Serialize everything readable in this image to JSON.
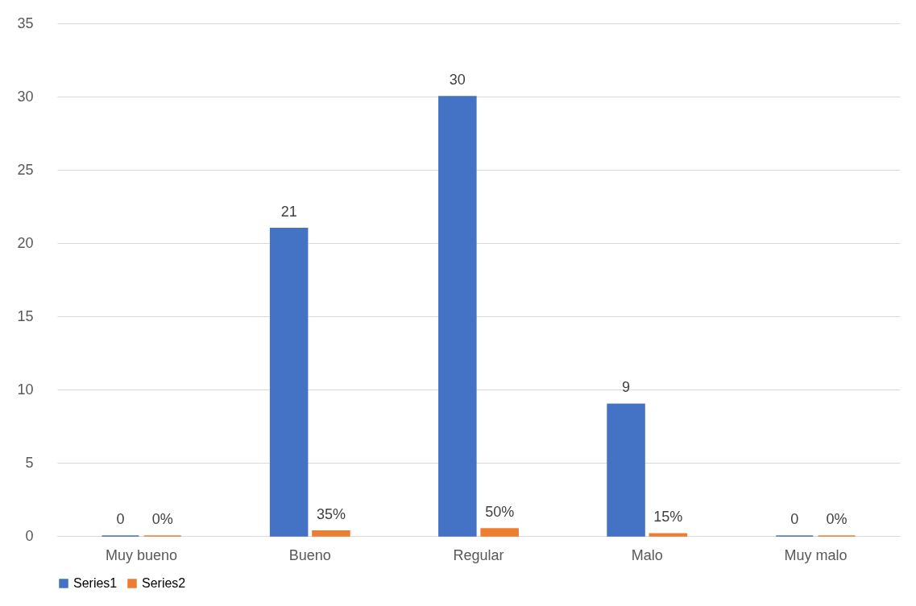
{
  "chart_data": {
    "type": "bar",
    "categories": [
      "Muy bueno",
      "Bueno",
      "Regular",
      "Malo",
      "Muy malo"
    ],
    "series": [
      {
        "name": "Series1",
        "color": "#4472c4",
        "values": [
          0,
          21,
          30,
          9,
          0
        ],
        "value_labels": [
          "0",
          "21",
          "30",
          "9",
          "0"
        ]
      },
      {
        "name": "Series2",
        "color": "#ed7d31",
        "values": [
          0,
          0.35,
          0.5,
          0.15,
          0
        ],
        "value_labels": [
          "0%",
          "35%",
          "50%",
          "15%",
          "0%"
        ]
      }
    ],
    "ylim": [
      0,
      35
    ],
    "yticks": [
      0,
      5,
      10,
      15,
      20,
      25,
      30,
      35
    ],
    "grid": "y",
    "legend": "bottom"
  }
}
